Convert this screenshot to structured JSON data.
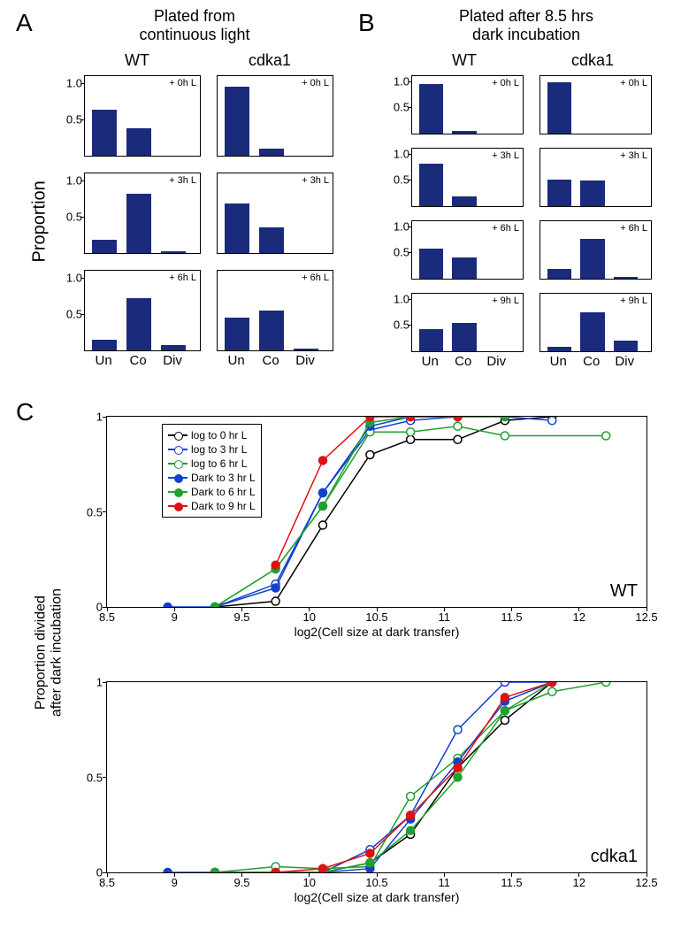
{
  "colors": {
    "bar": "#1a2b7c",
    "black": "#000000",
    "blue": "#1040d0",
    "green": "#20a030",
    "red": "#e01010",
    "white": "#ffffff"
  },
  "panelA": {
    "label": "A",
    "title_line1": "Plated from",
    "title_line2": "continuous light",
    "cols": [
      "WT",
      "cdka1"
    ],
    "xcats": [
      "Un",
      "Co",
      "Div"
    ],
    "yticks": [
      "0.5",
      "1.0"
    ],
    "charts": [
      [
        {
          "note": "+ 0h L",
          "vals": [
            0.63,
            0.38,
            0.0
          ]
        },
        {
          "note": "+ 3h L",
          "vals": [
            0.18,
            0.82,
            0.03
          ]
        },
        {
          "note": "+ 6h L",
          "vals": [
            0.15,
            0.72,
            0.07
          ]
        }
      ],
      [
        {
          "note": "+ 0h L",
          "vals": [
            0.95,
            0.1,
            0.0
          ]
        },
        {
          "note": "+ 3h L",
          "vals": [
            0.68,
            0.35,
            0.0
          ]
        },
        {
          "note": "+ 6h L",
          "vals": [
            0.45,
            0.55,
            0.02
          ]
        }
      ]
    ]
  },
  "panelB": {
    "label": "B",
    "title_line1": "Plated after 8.5 hrs",
    "title_line2": "dark incubation",
    "cols": [
      "WT",
      "cdka1"
    ],
    "xcats": [
      "Un",
      "Co",
      "Div"
    ],
    "yticks": [
      "0.5",
      "1.0"
    ],
    "charts": [
      [
        {
          "note": "+ 0h L",
          "vals": [
            0.95,
            0.05,
            0.0
          ]
        },
        {
          "note": "+ 3h L",
          "vals": [
            0.82,
            0.18,
            0.0
          ]
        },
        {
          "note": "+ 6h L",
          "vals": [
            0.58,
            0.4,
            0.0
          ]
        },
        {
          "note": "+ 9h L",
          "vals": [
            0.42,
            0.55,
            0.0
          ]
        }
      ],
      [
        {
          "note": "+ 0h L",
          "vals": [
            0.98,
            0.0,
            0.0
          ]
        },
        {
          "note": "+ 3h L",
          "vals": [
            0.5,
            0.49,
            0.0
          ]
        },
        {
          "note": "+ 6h L",
          "vals": [
            0.18,
            0.77,
            0.03
          ]
        },
        {
          "note": "+ 9h L",
          "vals": [
            0.08,
            0.75,
            0.2
          ]
        }
      ]
    ]
  },
  "panelC": {
    "label": "C",
    "ylabel": "Proportion divided\nafter dark incubation",
    "xlabel": "log2(Cell size at dark transfer)",
    "xmin": 8.5,
    "xmax": 12.5,
    "xticks": [
      8.5,
      9,
      9.5,
      10,
      10.5,
      11,
      11.5,
      12,
      12.5
    ],
    "yticks": [
      0,
      0.5,
      1
    ],
    "legend": [
      {
        "label": "log to 0 hr L",
        "color": "#000000",
        "filled": false
      },
      {
        "label": "log to 3 hr L",
        "color": "#1040d0",
        "filled": false
      },
      {
        "label": "log to 6 hr L",
        "color": "#20a030",
        "filled": false
      },
      {
        "label": "Dark to 3 hr L",
        "color": "#1040d0",
        "filled": true
      },
      {
        "label": "Dark to 6 hr L",
        "color": "#20a030",
        "filled": true
      },
      {
        "label": "Dark to 9 hr L",
        "color": "#e01010",
        "filled": true
      }
    ],
    "wt": {
      "label": "WT",
      "series": [
        {
          "color": "#000000",
          "filled": false,
          "pts": [
            [
              9.3,
              0.0
            ],
            [
              9.75,
              0.03
            ],
            [
              10.1,
              0.43
            ],
            [
              10.45,
              0.8
            ],
            [
              10.75,
              0.88
            ],
            [
              11.1,
              0.88
            ],
            [
              11.45,
              0.98
            ],
            [
              11.8,
              1.0
            ]
          ]
        },
        {
          "color": "#1040d0",
          "filled": false,
          "pts": [
            [
              9.3,
              0.0
            ],
            [
              9.75,
              0.12
            ],
            [
              10.1,
              0.6
            ],
            [
              10.45,
              0.93
            ],
            [
              10.75,
              0.98
            ],
            [
              11.1,
              1.0
            ],
            [
              11.45,
              1.0
            ],
            [
              11.8,
              0.98
            ]
          ]
        },
        {
          "color": "#20a030",
          "filled": false,
          "pts": [
            [
              9.3,
              0.0
            ],
            [
              9.75,
              0.2
            ],
            [
              10.1,
              0.53
            ],
            [
              10.45,
              0.92
            ],
            [
              10.75,
              0.92
            ],
            [
              11.1,
              0.95
            ],
            [
              11.45,
              0.9
            ],
            [
              12.2,
              0.9
            ]
          ]
        },
        {
          "color": "#1040d0",
          "filled": true,
          "pts": [
            [
              8.95,
              0.0
            ],
            [
              9.3,
              0.0
            ],
            [
              9.75,
              0.1
            ],
            [
              10.1,
              0.6
            ],
            [
              10.45,
              0.95
            ],
            [
              10.75,
              1.0
            ],
            [
              11.1,
              1.0
            ]
          ]
        },
        {
          "color": "#20a030",
          "filled": true,
          "pts": [
            [
              9.3,
              0.0
            ],
            [
              9.75,
              0.2
            ],
            [
              10.1,
              0.53
            ],
            [
              10.45,
              0.97
            ],
            [
              10.75,
              1.0
            ],
            [
              11.1,
              1.0
            ],
            [
              11.45,
              1.0
            ]
          ]
        },
        {
          "color": "#e01010",
          "filled": true,
          "pts": [
            [
              9.75,
              0.22
            ],
            [
              10.1,
              0.77
            ],
            [
              10.45,
              1.0
            ],
            [
              10.75,
              1.0
            ],
            [
              11.1,
              1.0
            ]
          ]
        }
      ]
    },
    "cdka1": {
      "label": "cdka1",
      "series": [
        {
          "color": "#000000",
          "filled": false,
          "pts": [
            [
              9.3,
              0.0
            ],
            [
              9.75,
              0.0
            ],
            [
              10.1,
              0.0
            ],
            [
              10.45,
              0.05
            ],
            [
              10.75,
              0.2
            ],
            [
              11.1,
              0.55
            ],
            [
              11.45,
              0.8
            ],
            [
              11.8,
              1.0
            ]
          ]
        },
        {
          "color": "#1040d0",
          "filled": false,
          "pts": [
            [
              9.3,
              0.0
            ],
            [
              9.75,
              0.0
            ],
            [
              10.1,
              0.0
            ],
            [
              10.45,
              0.12
            ],
            [
              10.75,
              0.3
            ],
            [
              11.1,
              0.75
            ],
            [
              11.45,
              1.0
            ],
            [
              11.8,
              1.0
            ]
          ]
        },
        {
          "color": "#20a030",
          "filled": false,
          "pts": [
            [
              9.3,
              0.0
            ],
            [
              9.75,
              0.03
            ],
            [
              10.1,
              0.02
            ],
            [
              10.45,
              0.03
            ],
            [
              10.75,
              0.4
            ],
            [
              11.1,
              0.6
            ],
            [
              11.45,
              0.85
            ],
            [
              11.8,
              0.95
            ],
            [
              12.2,
              1.0
            ]
          ]
        },
        {
          "color": "#1040d0",
          "filled": true,
          "pts": [
            [
              8.95,
              0.0
            ],
            [
              9.3,
              0.0
            ],
            [
              9.75,
              0.0
            ],
            [
              10.1,
              0.0
            ],
            [
              10.45,
              0.02
            ],
            [
              10.75,
              0.28
            ],
            [
              11.1,
              0.58
            ],
            [
              11.45,
              0.9
            ],
            [
              11.8,
              1.0
            ]
          ]
        },
        {
          "color": "#20a030",
          "filled": true,
          "pts": [
            [
              9.3,
              0.0
            ],
            [
              9.75,
              0.0
            ],
            [
              10.1,
              0.0
            ],
            [
              10.45,
              0.05
            ],
            [
              10.75,
              0.22
            ],
            [
              11.1,
              0.5
            ],
            [
              11.45,
              0.85
            ],
            [
              11.8,
              1.0
            ]
          ]
        },
        {
          "color": "#e01010",
          "filled": true,
          "pts": [
            [
              9.75,
              0.0
            ],
            [
              10.1,
              0.02
            ],
            [
              10.45,
              0.1
            ],
            [
              10.75,
              0.3
            ],
            [
              11.1,
              0.55
            ],
            [
              11.45,
              0.92
            ],
            [
              11.8,
              1.0
            ]
          ]
        }
      ]
    }
  },
  "ylabel_A": "Proportion"
}
